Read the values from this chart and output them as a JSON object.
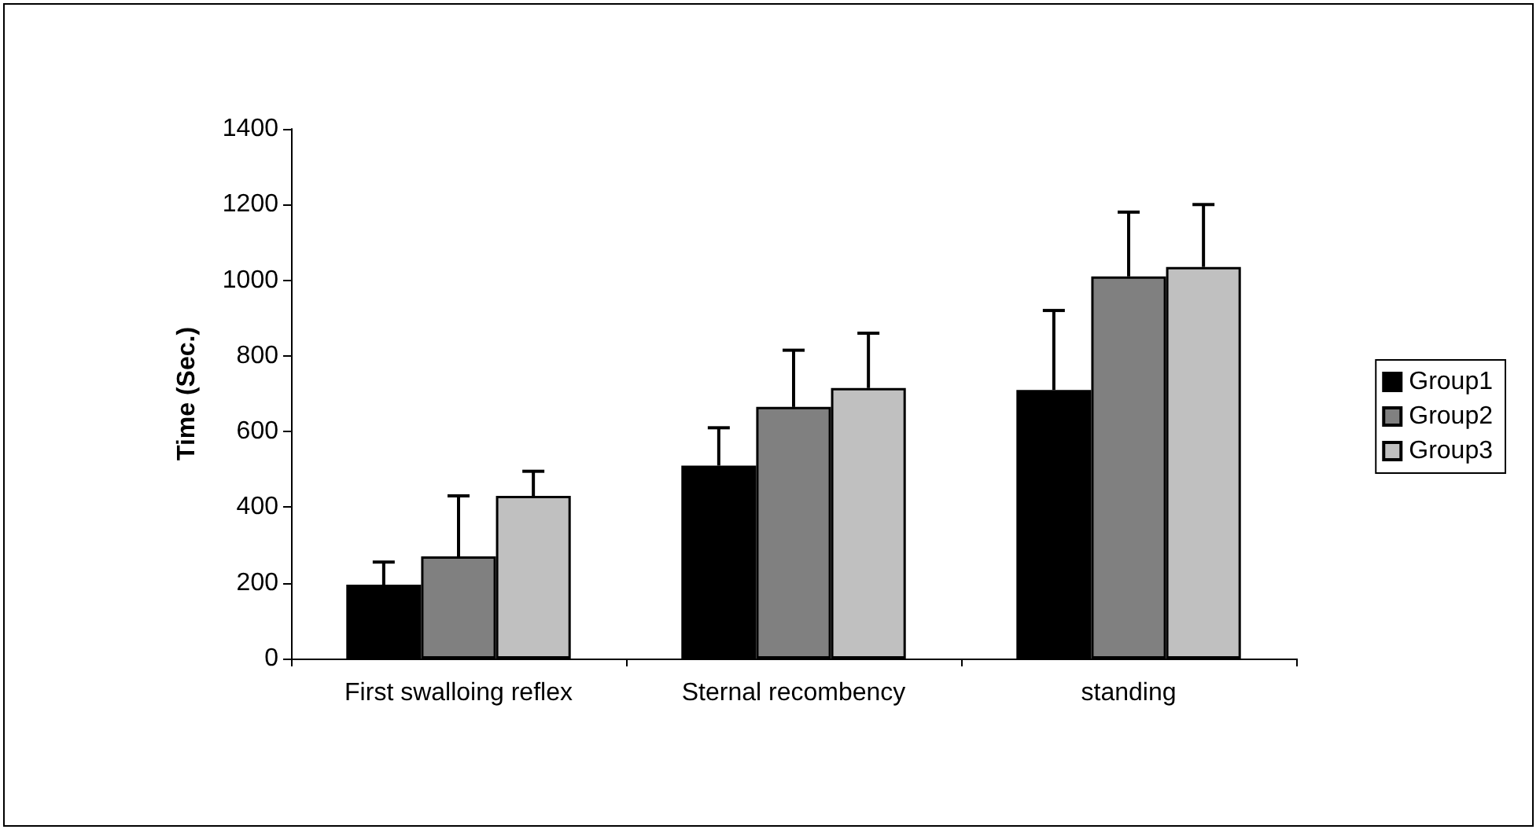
{
  "chart_data": {
    "type": "bar",
    "ylabel": "Time (Sec.)",
    "categories": [
      "First swalloing reflex",
      "Sternal recombency",
      "standing"
    ],
    "series": [
      {
        "name": "Group1",
        "color": "#000000",
        "values": [
          195,
          510,
          710
        ],
        "errors": [
          [
            195,
            255
          ],
          [
            510,
            610
          ],
          [
            710,
            920
          ]
        ]
      },
      {
        "name": "Group2",
        "color": "#808080",
        "values": [
          270,
          665,
          1010
        ],
        "errors": [
          [
            270,
            430
          ],
          [
            665,
            815
          ],
          [
            1010,
            1180
          ]
        ]
      },
      {
        "name": "Group3",
        "color": "#c0c0c0",
        "values": [
          430,
          715,
          1035
        ],
        "errors": [
          [
            430,
            495
          ],
          [
            715,
            860
          ],
          [
            1035,
            1200
          ]
        ]
      }
    ],
    "ylim": [
      0,
      1400
    ],
    "yticks": [
      0,
      200,
      400,
      600,
      800,
      1000,
      1200,
      1400
    ],
    "grid": false,
    "legend": "right"
  }
}
